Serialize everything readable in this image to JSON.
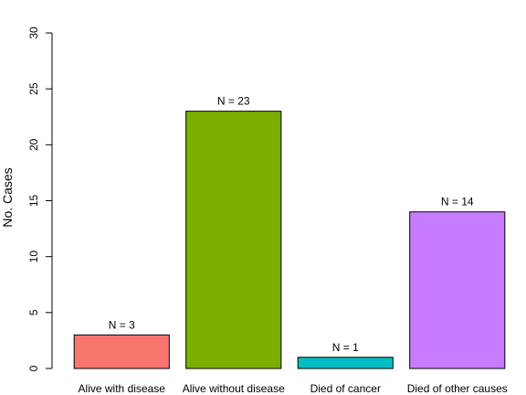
{
  "chart_data": {
    "type": "bar",
    "title": "",
    "xlabel": "",
    "ylabel": "No. Cases",
    "ylim": [
      0,
      30
    ],
    "yticks": [
      0,
      5,
      10,
      15,
      20,
      25,
      30
    ],
    "grid": false,
    "categories": [
      "Alive with disease",
      "Alive without disease",
      "Died of cancer",
      "Died of other causes"
    ],
    "values": [
      3,
      23,
      1,
      14
    ],
    "data_labels": [
      "N = 3",
      "N = 23",
      "N = 1",
      "N = 14"
    ],
    "colors": [
      "#f8766d",
      "#7cae00",
      "#00bfc4",
      "#c77cff"
    ]
  }
}
